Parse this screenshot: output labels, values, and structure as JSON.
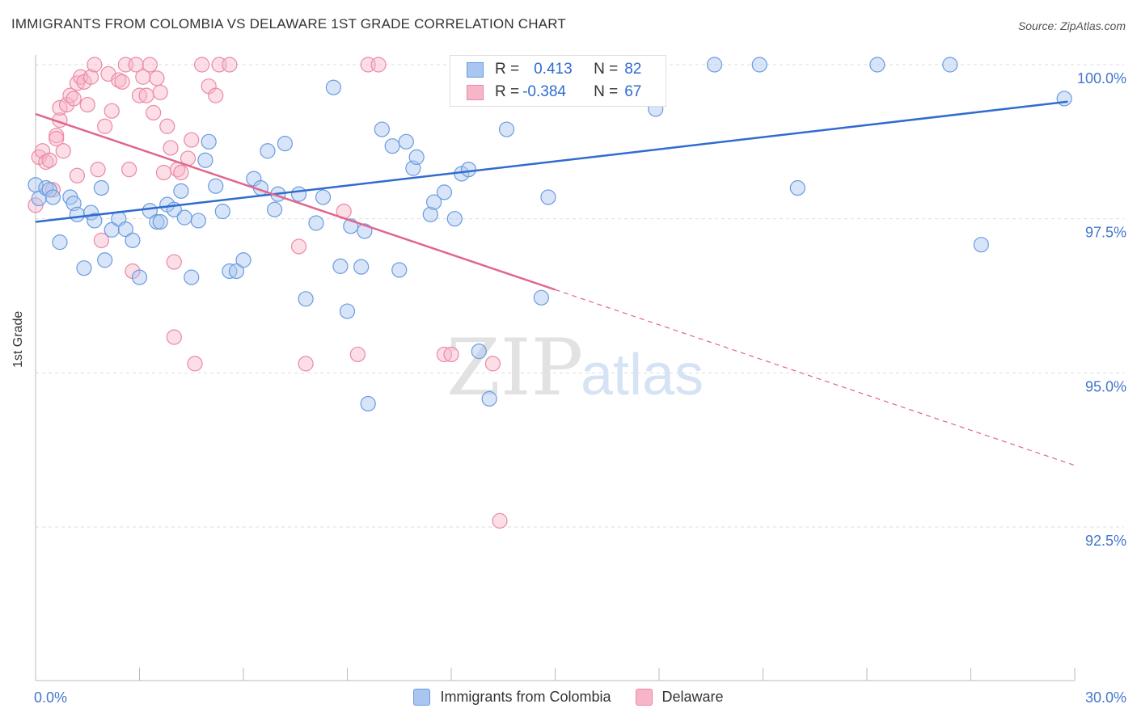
{
  "header": {
    "title": "IMMIGRANTS FROM COLOMBIA VS DELAWARE 1ST GRADE CORRELATION CHART",
    "source": "Source: ZipAtlas.com"
  },
  "watermark": {
    "zip": "ZIP",
    "atlas": "atlas"
  },
  "legend": {
    "blue": {
      "r_label": "R =",
      "r_value": "0.413",
      "n_label": "N =",
      "n_value": "82"
    },
    "pink": {
      "r_label": "R =",
      "r_value": "-0.384",
      "n_label": "N =",
      "n_value": "67"
    }
  },
  "colors": {
    "blue_fill": "#a8c6ef",
    "blue_stroke": "#6a9be0",
    "blue_line": "#2f6cce",
    "pink_fill": "#f6b6c8",
    "pink_stroke": "#ec88a6",
    "pink_line": "#e0668f",
    "axis_text": "#4477cc",
    "grid": "#dddddd"
  },
  "chart_data": {
    "type": "scatter",
    "title": "IMMIGRANTS FROM COLOMBIA VS DELAWARE 1ST GRADE CORRELATION CHART",
    "xlabel": "",
    "ylabel": "1st Grade",
    "xlim": [
      0,
      30
    ],
    "ylim": [
      90.0,
      100.5
    ],
    "x_tick_labels": [
      "0.0%",
      "30.0%"
    ],
    "y_ticks": [
      92.5,
      95.0,
      97.5,
      100.0
    ],
    "y_tick_labels": [
      "92.5%",
      "95.0%",
      "97.5%",
      "100.0%"
    ],
    "grid": true,
    "legend_position": "top-center",
    "series": [
      {
        "name": "Immigrants from Colombia",
        "color": "blue",
        "trend": {
          "x": [
            0,
            29.8
          ],
          "y": [
            97.45,
            99.4
          ],
          "dashed_after_x": null
        },
        "points": [
          [
            0.0,
            98.05
          ],
          [
            0.1,
            97.83
          ],
          [
            0.3,
            98.0
          ],
          [
            0.4,
            97.97
          ],
          [
            0.5,
            97.85
          ],
          [
            0.7,
            97.12
          ],
          [
            1.0,
            97.85
          ],
          [
            1.1,
            97.75
          ],
          [
            1.2,
            97.57
          ],
          [
            1.4,
            96.7
          ],
          [
            1.6,
            97.6
          ],
          [
            1.7,
            97.47
          ],
          [
            1.9,
            98.0
          ],
          [
            2.0,
            96.83
          ],
          [
            2.2,
            97.32
          ],
          [
            2.4,
            97.5
          ],
          [
            2.6,
            97.33
          ],
          [
            2.8,
            97.15
          ],
          [
            3.0,
            96.55
          ],
          [
            3.3,
            97.63
          ],
          [
            3.5,
            97.45
          ],
          [
            3.6,
            97.45
          ],
          [
            3.8,
            97.73
          ],
          [
            4.0,
            97.65
          ],
          [
            4.2,
            97.95
          ],
          [
            4.3,
            97.52
          ],
          [
            4.5,
            96.55
          ],
          [
            4.7,
            97.47
          ],
          [
            4.9,
            98.45
          ],
          [
            5.0,
            98.75
          ],
          [
            5.2,
            98.03
          ],
          [
            5.4,
            97.62
          ],
          [
            5.6,
            96.65
          ],
          [
            5.8,
            96.65
          ],
          [
            6.0,
            96.83
          ],
          [
            6.3,
            98.15
          ],
          [
            6.5,
            98.0
          ],
          [
            6.7,
            98.6
          ],
          [
            6.9,
            97.65
          ],
          [
            7.0,
            97.9
          ],
          [
            7.2,
            98.72
          ],
          [
            7.6,
            97.9
          ],
          [
            7.8,
            96.2
          ],
          [
            8.1,
            97.43
          ],
          [
            8.3,
            97.85
          ],
          [
            8.6,
            99.63
          ],
          [
            8.8,
            96.73
          ],
          [
            9.0,
            96.0
          ],
          [
            9.1,
            97.38
          ],
          [
            9.4,
            96.72
          ],
          [
            9.5,
            97.3
          ],
          [
            9.6,
            94.5
          ],
          [
            10.0,
            98.95
          ],
          [
            10.3,
            98.68
          ],
          [
            10.5,
            96.67
          ],
          [
            10.7,
            98.75
          ],
          [
            10.9,
            98.32
          ],
          [
            11.0,
            98.5
          ],
          [
            11.4,
            97.57
          ],
          [
            11.5,
            97.77
          ],
          [
            11.8,
            97.93
          ],
          [
            12.1,
            97.5
          ],
          [
            12.2,
            99.57
          ],
          [
            12.3,
            98.23
          ],
          [
            12.5,
            98.3
          ],
          [
            12.8,
            95.35
          ],
          [
            13.1,
            94.58
          ],
          [
            13.6,
            98.95
          ],
          [
            13.8,
            100.0
          ],
          [
            14.6,
            96.22
          ],
          [
            14.8,
            97.85
          ],
          [
            17.6,
            100.0
          ],
          [
            17.9,
            99.28
          ],
          [
            19.6,
            100.0
          ],
          [
            20.9,
            100.0
          ],
          [
            22.0,
            98.0
          ],
          [
            24.3,
            100.0
          ],
          [
            26.4,
            100.0
          ],
          [
            27.3,
            97.08
          ],
          [
            29.7,
            99.45
          ]
        ]
      },
      {
        "name": "Delaware",
        "color": "pink",
        "trend": {
          "x": [
            0,
            15.0,
            30.0
          ],
          "y": [
            99.2,
            96.35,
            93.5
          ],
          "dashed_after_x": 15.0
        },
        "points": [
          [
            0.0,
            97.72
          ],
          [
            0.1,
            98.5
          ],
          [
            0.2,
            98.6
          ],
          [
            0.3,
            98.42
          ],
          [
            0.4,
            98.45
          ],
          [
            0.5,
            97.97
          ],
          [
            0.6,
            98.85
          ],
          [
            0.6,
            98.8
          ],
          [
            0.7,
            99.1
          ],
          [
            0.7,
            99.3
          ],
          [
            0.8,
            98.6
          ],
          [
            0.9,
            99.35
          ],
          [
            1.0,
            99.5
          ],
          [
            1.1,
            99.45
          ],
          [
            1.2,
            99.7
          ],
          [
            1.2,
            98.2
          ],
          [
            1.3,
            99.8
          ],
          [
            1.4,
            99.72
          ],
          [
            1.5,
            99.35
          ],
          [
            1.6,
            99.8
          ],
          [
            1.7,
            100.0
          ],
          [
            1.8,
            98.3
          ],
          [
            1.9,
            97.15
          ],
          [
            2.0,
            99.0
          ],
          [
            2.1,
            99.85
          ],
          [
            2.2,
            99.25
          ],
          [
            2.4,
            99.75
          ],
          [
            2.5,
            99.72
          ],
          [
            2.6,
            100.0
          ],
          [
            2.7,
            98.3
          ],
          [
            2.8,
            96.65
          ],
          [
            2.9,
            100.0
          ],
          [
            3.0,
            99.5
          ],
          [
            3.1,
            99.8
          ],
          [
            3.2,
            99.5
          ],
          [
            3.3,
            100.0
          ],
          [
            3.4,
            99.22
          ],
          [
            3.5,
            99.78
          ],
          [
            3.6,
            99.55
          ],
          [
            3.7,
            98.25
          ],
          [
            3.8,
            99.0
          ],
          [
            3.9,
            98.65
          ],
          [
            4.0,
            96.8
          ],
          [
            4.0,
            95.58
          ],
          [
            4.1,
            98.3
          ],
          [
            4.2,
            98.25
          ],
          [
            4.4,
            98.48
          ],
          [
            4.5,
            98.78
          ],
          [
            4.6,
            95.15
          ],
          [
            4.8,
            100.0
          ],
          [
            5.0,
            99.65
          ],
          [
            5.2,
            99.5
          ],
          [
            5.3,
            100.0
          ],
          [
            5.6,
            100.0
          ],
          [
            7.6,
            97.05
          ],
          [
            7.8,
            95.15
          ],
          [
            8.9,
            97.62
          ],
          [
            9.3,
            95.3
          ],
          [
            9.6,
            100.0
          ],
          [
            9.9,
            100.0
          ],
          [
            11.8,
            95.3
          ],
          [
            12.0,
            95.3
          ],
          [
            12.9,
            100.0
          ],
          [
            13.2,
            95.15
          ],
          [
            13.4,
            92.6
          ]
        ]
      }
    ]
  },
  "bottom_legend": {
    "blue_label": "Immigrants from Colombia",
    "pink_label": "Delaware"
  }
}
